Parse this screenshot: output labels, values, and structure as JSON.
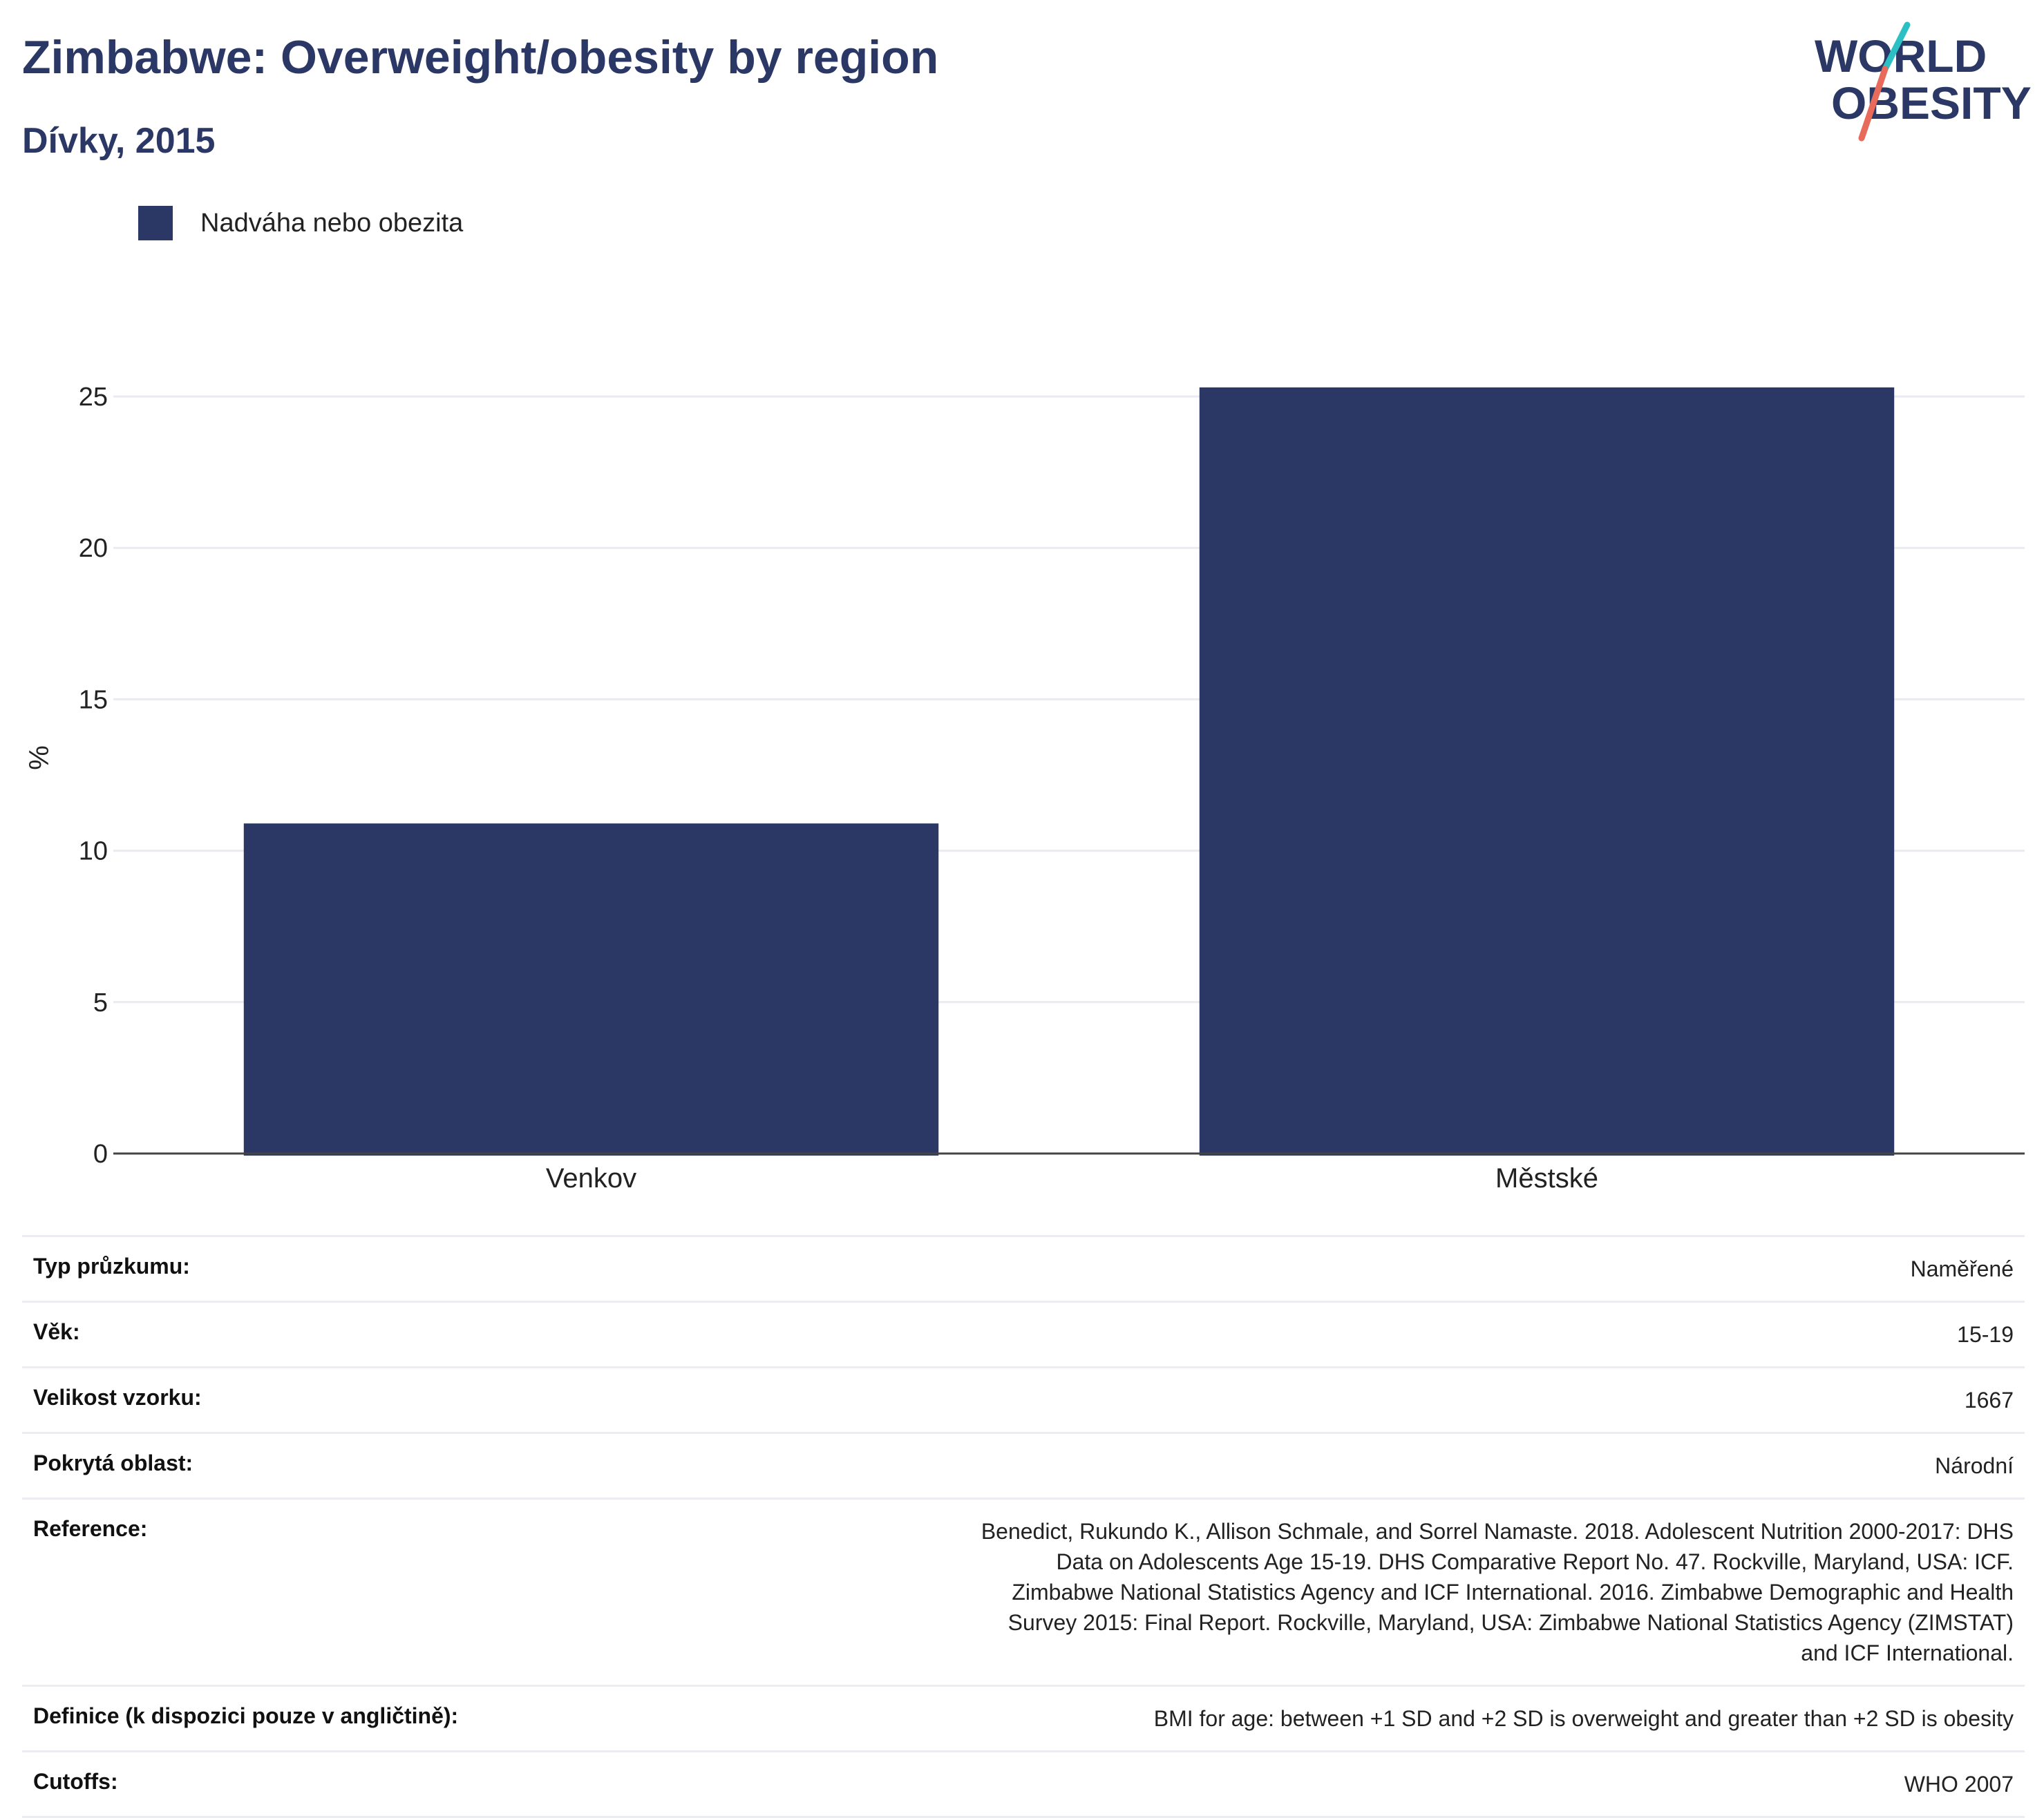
{
  "header": {
    "title": "Zimbabwe: Overweight/obesity by region",
    "subtitle": "Dívky, 2015"
  },
  "logo": {
    "line1": "WORLD",
    "line2": "OBESITY",
    "colors": {
      "text": "#2b3764",
      "teal": "#2cbfc3",
      "coral": "#e86a5a"
    }
  },
  "legend": [
    {
      "label": "Nadváha nebo obezita",
      "color": "#2b3764"
    }
  ],
  "chart_data": {
    "type": "bar",
    "categories": [
      "Venkov",
      "Městské"
    ],
    "series": [
      {
        "name": "Nadváha nebo obezita",
        "values": [
          10.9,
          25.3
        ],
        "color": "#2b3764"
      }
    ],
    "ylabel": "%",
    "ylim": [
      0,
      25
    ],
    "yticks": [
      0,
      5,
      10,
      15,
      20,
      25
    ],
    "grid": true,
    "legend_position": "top-left"
  },
  "info": [
    {
      "key": "Typ průzkumu:",
      "value": "Naměřené"
    },
    {
      "key": "Věk:",
      "value": "15-19"
    },
    {
      "key": "Velikost vzorku:",
      "value": "1667"
    },
    {
      "key": "Pokrytá oblast:",
      "value": "Národní"
    },
    {
      "key": "Reference:",
      "value": "Benedict, Rukundo K., Allison Schmale, and Sorrel Namaste. 2018. Adolescent Nutrition 2000-2017: DHS Data on Adolescents Age 15-19. DHS Comparative Report No. 47. Rockville, Maryland, USA: ICF. Zimbabwe National Statistics Agency and ICF International. 2016. Zimbabwe Demographic and Health Survey 2015: Final Report. Rockville, Maryland, USA: Zimbabwe National Statistics Agency (ZIMSTAT) and ICF International."
    },
    {
      "key": "Definice (k dispozici pouze v angličtině):",
      "value": "BMI for age: between +1 SD and +2 SD is overweight and greater than +2 SD is obesity"
    },
    {
      "key": "Cutoffs:",
      "value": "WHO 2007"
    }
  ]
}
